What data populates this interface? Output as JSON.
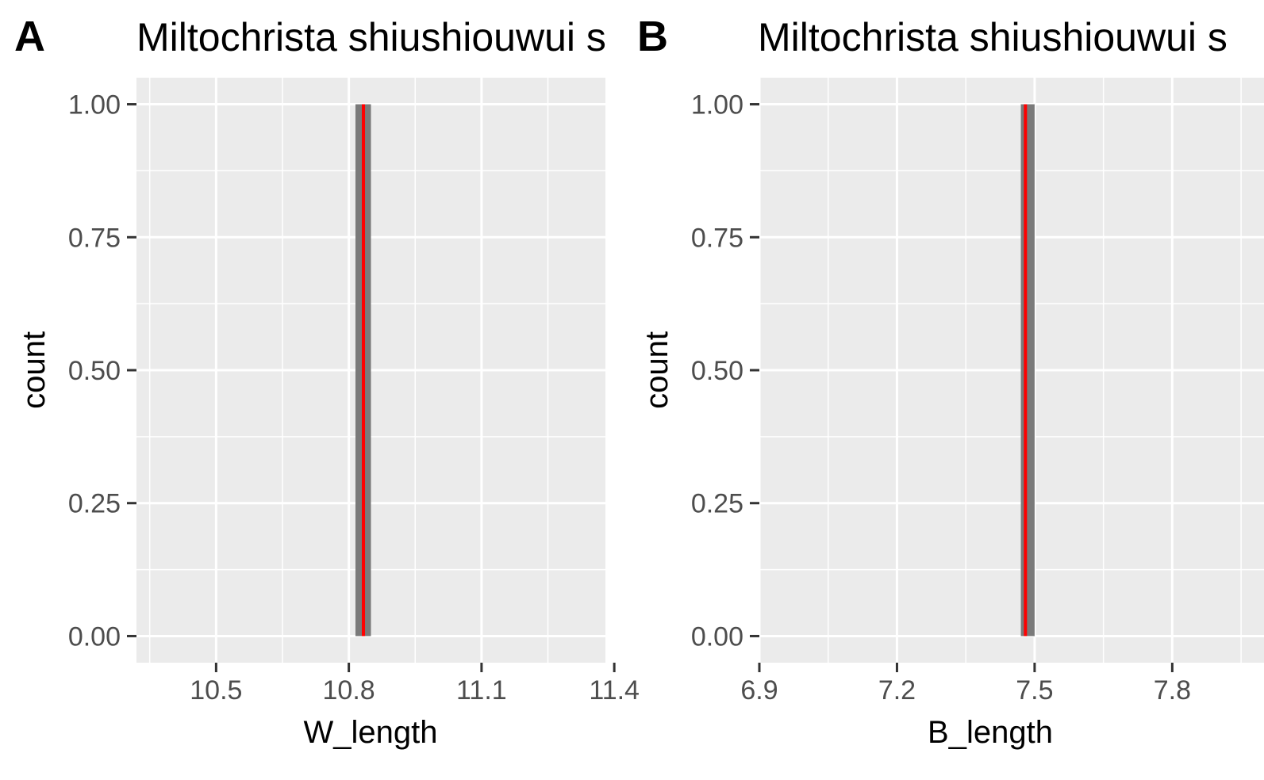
{
  "chart_data": [
    {
      "type": "bar",
      "panel_tag": "A",
      "title": "Miltochrista shiushiouwui s",
      "xlabel": "W_length",
      "ylabel": "count",
      "xlim": [
        10.32,
        11.38
      ],
      "ylim": [
        -0.05,
        1.05
      ],
      "x_ticks": [
        10.5,
        10.8,
        11.1,
        11.4
      ],
      "x_tick_labels": [
        "10.5",
        "10.8",
        "11.1",
        "11.4"
      ],
      "y_ticks": [
        0,
        0.25,
        0.5,
        0.75,
        1
      ],
      "y_tick_labels": [
        "0.00",
        "0.25",
        "0.50",
        "0.75",
        "1.00"
      ],
      "bars": [
        {
          "x_min": 10.815,
          "x_max": 10.85,
          "count": 1
        }
      ],
      "reference_line": {
        "x": 10.833,
        "color": "#ff0000"
      },
      "bar_color": "#7a7a7a",
      "grid": true,
      "panel_background": "#ebebeb"
    },
    {
      "type": "bar",
      "panel_tag": "B",
      "title": "Miltochrista shiushiouwui s",
      "xlabel": "B_length",
      "ylabel": "count",
      "xlim": [
        6.9,
        8.0
      ],
      "ylim": [
        -0.05,
        1.05
      ],
      "x_ticks": [
        6.9,
        7.2,
        7.5,
        7.8
      ],
      "x_tick_labels": [
        "6.9",
        "7.2",
        "7.5",
        "7.8"
      ],
      "y_ticks": [
        0,
        0.25,
        0.5,
        0.75,
        1
      ],
      "y_tick_labels": [
        "0.00",
        "0.25",
        "0.50",
        "0.75",
        "1.00"
      ],
      "bars": [
        {
          "x_min": 7.47,
          "x_max": 7.5,
          "count": 1
        }
      ],
      "reference_line": {
        "x": 7.48,
        "color": "#ff0000"
      },
      "bar_color": "#7a7a7a",
      "grid": true,
      "panel_background": "#ebebeb"
    }
  ]
}
